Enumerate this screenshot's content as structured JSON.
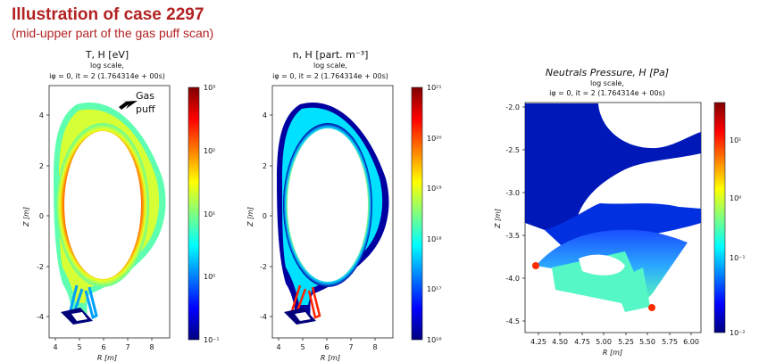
{
  "slide": {
    "title": "Illustration of case 2297",
    "subtitle": "(mid-upper part of the gas puff scan)"
  },
  "chart_data": [
    {
      "type": "heatmap",
      "title": "T, H [eV]",
      "subtitle_lines": [
        "log scale,",
        "iφ = 0,  it = 2 (1.764314e + 00s)"
      ],
      "xlabel": "R [m]",
      "ylabel": "Z [m]",
      "xticks": [
        4,
        5,
        6,
        7,
        8
      ],
      "yticks": [
        -4,
        -2,
        0,
        2,
        4
      ],
      "xlim": [
        3.7,
        8.7
      ],
      "ylim": [
        -5.0,
        5.0
      ],
      "colorbar": {
        "scale": "log",
        "ticks": [
          "10⁻¹",
          "10⁰",
          "10¹",
          "10²",
          "10³"
        ],
        "range": [
          0.1,
          1000
        ]
      },
      "annotation": {
        "text_lines": [
          "Gas",
          "puff"
        ],
        "points_to": [
          6.3,
          3.9
        ]
      }
    },
    {
      "type": "heatmap",
      "title": "n, H [part. m⁻³]",
      "subtitle_lines": [
        "log scale,",
        "iφ = 0,  it = 2 (1.764314e + 00s)"
      ],
      "xlabel": "R [m]",
      "ylabel": "Z [m]",
      "xticks": [
        4,
        5,
        6,
        7,
        8
      ],
      "yticks": [
        -4,
        -2,
        0,
        2,
        4
      ],
      "xlim": [
        3.7,
        8.7
      ],
      "ylim": [
        -5.0,
        5.0
      ],
      "colorbar": {
        "scale": "log",
        "ticks": [
          "10¹⁶",
          "10¹⁷",
          "10¹⁸",
          "10¹⁹",
          "10²⁰",
          "10²¹"
        ],
        "range": [
          1e+16,
          1e+21
        ]
      }
    },
    {
      "type": "heatmap",
      "title": "Neutrals Pressure, H [Pa]",
      "subtitle_lines": [
        "log scale,",
        "iφ = 0,  it = 2 (1.764314e + 00s)"
      ],
      "xlabel": "R [m]",
      "ylabel": "Z [m]",
      "xticks": [
        "4.25",
        "4.50",
        "4.75",
        "5.00",
        "5.25",
        "5.50",
        "5.75",
        "6.00"
      ],
      "yticks": [
        "-2.0",
        "-2.5",
        "-3.0",
        "-3.5",
        "-4.0",
        "-4.5"
      ],
      "xlim": [
        4.1,
        6.1
      ],
      "ylim": [
        -4.65,
        -1.95
      ],
      "colorbar": {
        "scale": "log",
        "ticks": [
          "10⁻²",
          "10⁻¹",
          "10⁰",
          "10¹"
        ],
        "range": [
          0.01,
          50
        ]
      }
    }
  ],
  "colors": {
    "title_red": "#b22222",
    "jet": [
      "#00007f",
      "#0000ff",
      "#007fff",
      "#00ffff",
      "#7fff7f",
      "#ffff00",
      "#ff7f00",
      "#ff0000",
      "#7f0000"
    ]
  }
}
